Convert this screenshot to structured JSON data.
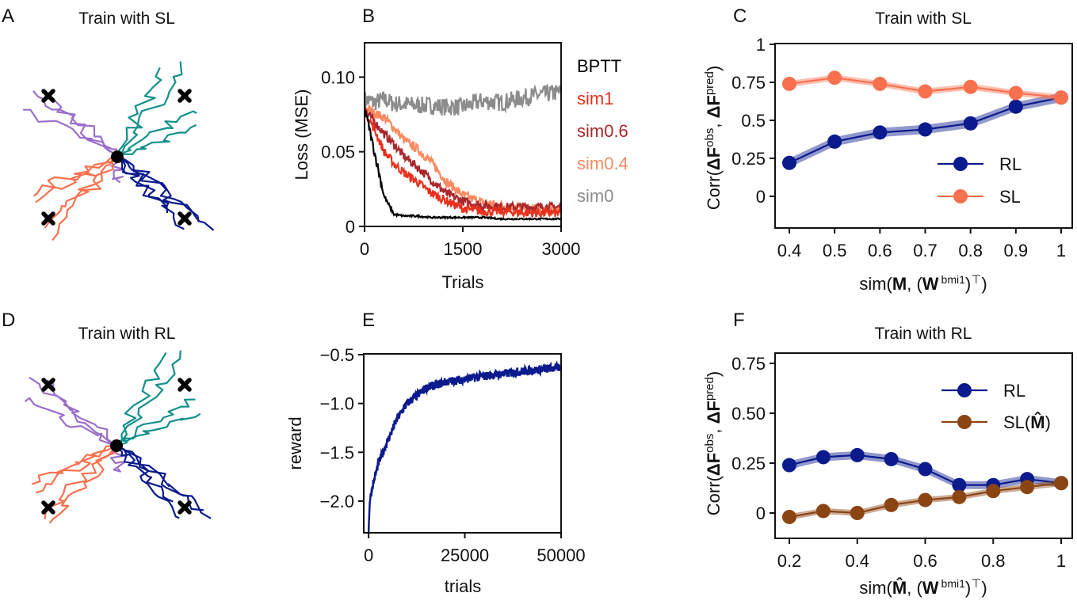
{
  "panels": {
    "A": {
      "letter": "A",
      "title": "Train with SL"
    },
    "B": {
      "letter": "B"
    },
    "C": {
      "letter": "C",
      "title": "Train with SL"
    },
    "D": {
      "letter": "D",
      "title": "Train with RL"
    },
    "E": {
      "letter": "E"
    },
    "F": {
      "letter": "F",
      "title": "Train with RL"
    }
  },
  "trajectory_colors": {
    "upper_left": "#9a6fc9",
    "upper_right": "#12908a",
    "lower_left": "#f8714f",
    "lower_right": "#0b1a8c",
    "target": "#000000"
  },
  "chart_data": [
    {
      "panel": "B",
      "type": "line",
      "xlabel": "Trials",
      "ylabel": "Loss (MSE)",
      "xlim": [
        0,
        3000
      ],
      "ylim": [
        0,
        0.123
      ],
      "xticks": [
        0,
        1500,
        3000
      ],
      "xticklabels": [
        "0",
        "1500",
        "3000"
      ],
      "yticks": [
        0,
        0.05,
        0.1
      ],
      "yticklabels": [
        "0",
        "0.05",
        "0.10"
      ],
      "legend_placement": "right-outside",
      "x": [
        0,
        150,
        300,
        450,
        600,
        800,
        1000,
        1250,
        1500,
        1800,
        2100,
        2500,
        3000
      ],
      "series": [
        {
          "name": "BPTT",
          "color": "#000000",
          "values": [
            0.08,
            0.05,
            0.02,
            0.008,
            0.007,
            0.007,
            0.006,
            0.006,
            0.006,
            0.006,
            0.005,
            0.005,
            0.005
          ]
        },
        {
          "name": "sim1",
          "color": "#e8301c",
          "values": [
            0.078,
            0.065,
            0.05,
            0.042,
            0.036,
            0.03,
            0.023,
            0.017,
            0.012,
            0.01,
            0.01,
            0.009,
            0.009
          ]
        },
        {
          "name": "sim0.6",
          "color": "#a8282d",
          "values": [
            0.078,
            0.07,
            0.062,
            0.055,
            0.047,
            0.04,
            0.032,
            0.022,
            0.017,
            0.014,
            0.013,
            0.013,
            0.013
          ]
        },
        {
          "name": "sim0.4",
          "color": "#f98a62",
          "values": [
            0.08,
            0.076,
            0.073,
            0.066,
            0.058,
            0.052,
            0.044,
            0.03,
            0.021,
            0.016,
            0.014,
            0.012,
            0.011
          ]
        },
        {
          "name": "sim0",
          "color": "#8c8c8c",
          "values": [
            0.085,
            0.083,
            0.085,
            0.082,
            0.082,
            0.081,
            0.081,
            0.08,
            0.08,
            0.084,
            0.083,
            0.087,
            0.09
          ]
        }
      ]
    },
    {
      "panel": "C",
      "type": "line",
      "title": "Train with SL",
      "ylabel_parts": [
        "Corr(",
        "ΔF",
        "obs",
        ", ",
        "ΔF",
        "pred",
        ")"
      ],
      "xlabel_parts": [
        "sim(",
        "M",
        ", (",
        "W",
        "bmi1",
        ")",
        "⊤",
        ")"
      ],
      "xlim": [
        0.37,
        1.03
      ],
      "ylim": [
        -0.21,
        1.1
      ],
      "xticks": [
        0.4,
        0.5,
        0.6,
        0.7,
        0.8,
        0.9,
        1
      ],
      "xticklabels": [
        "0.4",
        "0.5",
        "0.6",
        "0.7",
        "0.8",
        "0.9",
        "1"
      ],
      "yticks": [
        0,
        0.25,
        0.5,
        0.75,
        1
      ],
      "yticklabels": [
        "0",
        "0.25",
        "0.5",
        "0.75",
        "1"
      ],
      "legend_placement": "lower-right",
      "x": [
        0.4,
        0.5,
        0.6,
        0.7,
        0.8,
        0.9,
        1
      ],
      "series": [
        {
          "name": "RL",
          "color": "#0b1a8c",
          "values": [
            0.22,
            0.36,
            0.42,
            0.44,
            0.48,
            0.59,
            0.65
          ],
          "err": 0.03
        },
        {
          "name": "SL",
          "color": "#f8714f",
          "values": [
            0.74,
            0.78,
            0.74,
            0.69,
            0.72,
            0.68,
            0.65
          ],
          "err": 0.02
        }
      ]
    },
    {
      "panel": "E",
      "type": "line",
      "xlabel": "trials",
      "ylabel": "reward",
      "xlim": [
        -1250,
        50000
      ],
      "ylim": [
        -2.32,
        -0.5
      ],
      "xticks": [
        0,
        25000,
        50000
      ],
      "xticklabels": [
        "0",
        "25000",
        "50000"
      ],
      "yticks": [
        -0.5,
        -1.0,
        -1.5,
        -2.0
      ],
      "yticklabels": [
        "−0.5",
        "−1.0",
        "−1.5",
        "−2.0"
      ],
      "x": [
        0,
        300,
        1000,
        2500,
        5000,
        7500,
        10000,
        12500,
        15000,
        20000,
        25000,
        30000,
        40000,
        50000
      ],
      "series": [
        {
          "name": "reward",
          "color": "#0b1a8c",
          "values": [
            -2.32,
            -2.0,
            -1.85,
            -1.62,
            -1.38,
            -1.15,
            -1.0,
            -0.92,
            -0.84,
            -0.78,
            -0.75,
            -0.72,
            -0.67,
            -0.63
          ]
        }
      ]
    },
    {
      "panel": "F",
      "type": "line",
      "title": "Train with RL",
      "ylabel_parts": [
        "Corr(",
        "ΔF",
        "obs",
        ", ",
        "ΔF",
        "pred",
        ")"
      ],
      "xlabel_parts": [
        "sim(",
        "M̂",
        ", (",
        "W",
        "bmi1",
        ")",
        "⊤",
        ")"
      ],
      "xlim": [
        0.17,
        1.03
      ],
      "ylim": [
        -0.13,
        0.8
      ],
      "xticks": [
        0.2,
        0.4,
        0.6,
        0.8,
        1
      ],
      "xticklabels": [
        "0.2",
        "0.4",
        "0.6",
        "0.8",
        "1"
      ],
      "yticks": [
        0,
        0.25,
        0.5,
        0.75
      ],
      "yticklabels": [
        "0",
        "0.25",
        "0.50",
        "0.75"
      ],
      "legend_placement": "upper-right",
      "legend_labels": [
        [
          "RL"
        ],
        [
          "SL(",
          "M̂",
          ")"
        ]
      ],
      "x": [
        0.2,
        0.3,
        0.4,
        0.5,
        0.6,
        0.7,
        0.8,
        0.9,
        1
      ],
      "series": [
        {
          "name": "RL",
          "color": "#0b1a8c",
          "values": [
            0.24,
            0.28,
            0.29,
            0.27,
            0.22,
            0.14,
            0.14,
            0.17,
            0.15
          ],
          "err": 0.02
        },
        {
          "name": "SL(M̂)",
          "color": "#8b4513",
          "values": [
            -0.02,
            0.01,
            0.0,
            0.04,
            0.065,
            0.08,
            0.11,
            0.13,
            0.15
          ],
          "err": 0.015
        }
      ]
    }
  ]
}
